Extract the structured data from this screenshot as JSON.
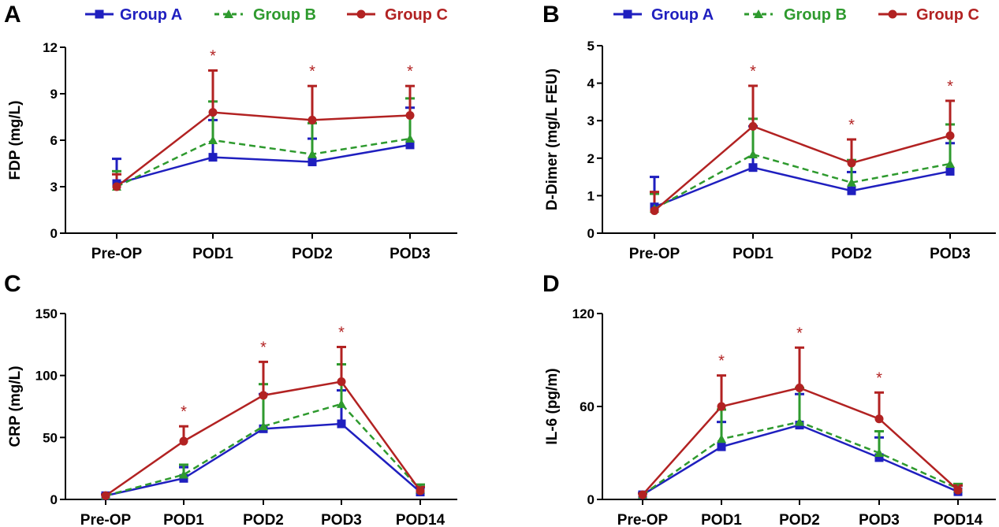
{
  "colors": {
    "Group A": "#1f1fbf",
    "Group B": "#2e9a2e",
    "Group C": "#b22222"
  },
  "legend": [
    {
      "name": "Group A",
      "style": "solid",
      "marker": "square"
    },
    {
      "name": "Group B",
      "style": "dashed",
      "marker": "triangle"
    },
    {
      "name": "Group C",
      "style": "solid",
      "marker": "circle"
    }
  ],
  "chart_data": [
    {
      "panel": "A",
      "type": "line",
      "ylabel": "FDP (mg/L)",
      "categories": [
        "Pre-OP",
        "POD1",
        "POD2",
        "POD3"
      ],
      "ylim": [
        0,
        12
      ],
      "yticks": [
        0,
        3,
        6,
        9,
        12
      ],
      "series": [
        {
          "name": "Group A",
          "values": [
            3.2,
            4.9,
            4.6,
            5.7
          ],
          "err": [
            1.6,
            2.4,
            1.5,
            2.4
          ]
        },
        {
          "name": "Group B",
          "values": [
            3.0,
            6.0,
            5.1,
            6.1
          ],
          "err": [
            1.0,
            2.5,
            2.0,
            2.6
          ]
        },
        {
          "name": "Group C",
          "values": [
            3.0,
            7.8,
            7.3,
            7.6
          ],
          "err": [
            0.8,
            2.7,
            2.2,
            1.9
          ]
        }
      ],
      "significance": [
        "",
        "*",
        "*",
        "*"
      ]
    },
    {
      "panel": "B",
      "type": "line",
      "ylabel": "D-Dimer (mg/L FEU)",
      "categories": [
        "Pre-OP",
        "POD1",
        "POD2",
        "POD3"
      ],
      "ylim": [
        0,
        5
      ],
      "yticks": [
        0,
        1,
        2,
        3,
        4,
        5
      ],
      "series": [
        {
          "name": "Group A",
          "values": [
            0.7,
            1.75,
            1.13,
            1.65
          ],
          "err": [
            0.8,
            1.1,
            0.5,
            0.75
          ]
        },
        {
          "name": "Group B",
          "values": [
            0.65,
            2.1,
            1.35,
            1.85
          ],
          "err": [
            0.4,
            0.95,
            0.6,
            1.05
          ]
        },
        {
          "name": "Group C",
          "values": [
            0.6,
            2.85,
            1.87,
            2.6
          ],
          "err": [
            0.5,
            1.08,
            0.63,
            0.93
          ]
        }
      ],
      "significance": [
        "",
        "*",
        "*",
        "*"
      ]
    },
    {
      "panel": "C",
      "type": "line",
      "ylabel": "CRP (mg/L)",
      "categories": [
        "Pre-OP",
        "POD1",
        "POD2",
        "POD3",
        "POD14"
      ],
      "ylim": [
        0,
        150
      ],
      "yticks": [
        0,
        50,
        100,
        150
      ],
      "series": [
        {
          "name": "Group A",
          "values": [
            3,
            17,
            57,
            61,
            6
          ],
          "err": [
            1,
            9,
            28,
            27,
            4
          ]
        },
        {
          "name": "Group B",
          "values": [
            3,
            20,
            59,
            77,
            8
          ],
          "err": [
            1,
            8,
            34,
            32,
            4
          ]
        },
        {
          "name": "Group C",
          "values": [
            3,
            47,
            84,
            95,
            7
          ],
          "err": [
            1,
            12,
            27,
            28,
            3
          ]
        }
      ],
      "significance": [
        "",
        "*",
        "*",
        "*",
        ""
      ]
    },
    {
      "panel": "D",
      "type": "line",
      "ylabel": "IL-6 (pg/m)",
      "categories": [
        "Pre-OP",
        "POD1",
        "POD2",
        "POD3",
        "POD14"
      ],
      "ylim": [
        0,
        120
      ],
      "yticks": [
        0,
        60,
        120
      ],
      "series": [
        {
          "name": "Group A",
          "values": [
            3,
            34,
            48,
            27,
            5
          ],
          "err": [
            1,
            16,
            20,
            13,
            4
          ]
        },
        {
          "name": "Group B",
          "values": [
            3,
            39,
            50,
            30,
            7
          ],
          "err": [
            1,
            19,
            22,
            14,
            3
          ]
        },
        {
          "name": "Group C",
          "values": [
            3,
            60,
            72,
            52,
            6
          ],
          "err": [
            1,
            20,
            26,
            17,
            3
          ]
        }
      ],
      "significance": [
        "",
        "*",
        "*",
        "*",
        ""
      ]
    }
  ]
}
